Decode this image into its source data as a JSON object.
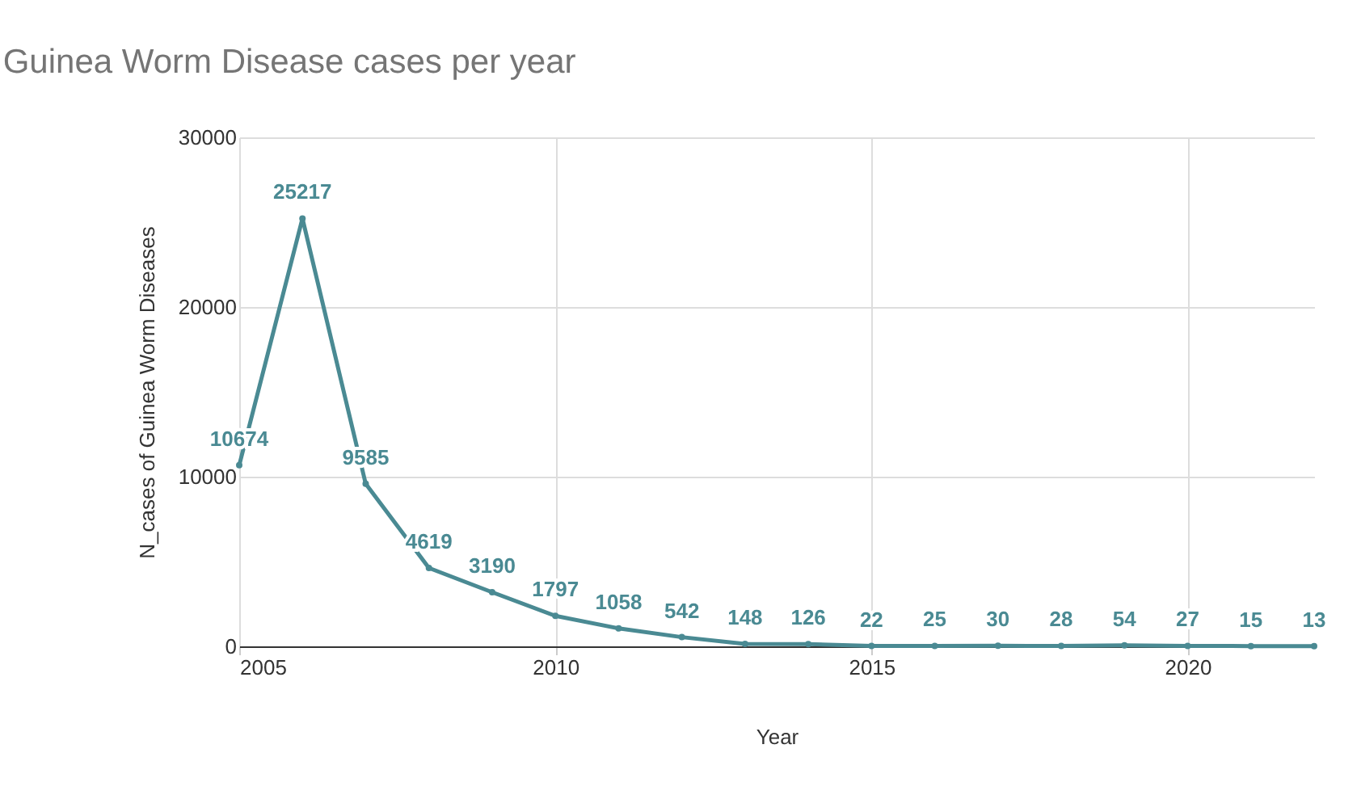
{
  "chart_data": {
    "type": "line",
    "title": "Guinea Worm Disease cases per year",
    "xlabel": "Year",
    "ylabel": "N_cases of Guinea Worm Diseases",
    "x": [
      2005,
      2006,
      2007,
      2008,
      2009,
      2010,
      2011,
      2012,
      2013,
      2014,
      2015,
      2016,
      2017,
      2018,
      2019,
      2020,
      2021,
      2022
    ],
    "series": [
      {
        "color": "#4a8a93",
        "values": [
          10674,
          25217,
          9585,
          4619,
          3190,
          1797,
          1058,
          542,
          148,
          126,
          22,
          25,
          30,
          28,
          54,
          27,
          15,
          13
        ]
      }
    ],
    "xlim": [
      2005,
      2022
    ],
    "xticks": [
      2005,
      2010,
      2015,
      2020
    ],
    "ylim": [
      0,
      30000
    ],
    "yticks": [
      0,
      10000,
      20000,
      30000
    ],
    "grid": true,
    "marker": "circle",
    "data_labels": true
  }
}
